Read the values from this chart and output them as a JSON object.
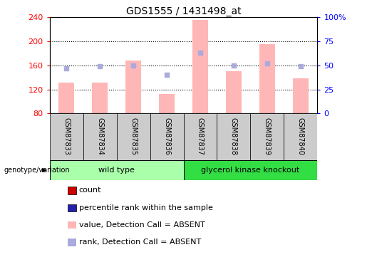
{
  "title": "GDS1555 / 1431498_at",
  "samples": [
    "GSM87833",
    "GSM87834",
    "GSM87835",
    "GSM87836",
    "GSM87837",
    "GSM87838",
    "GSM87839",
    "GSM87840"
  ],
  "bar_values": [
    132,
    132,
    168,
    113,
    236,
    150,
    195,
    138
  ],
  "rank_values": [
    47,
    49,
    50,
    40,
    63,
    50,
    52,
    49
  ],
  "bar_bottom": 80,
  "ylim_left": [
    80,
    240
  ],
  "ylim_right": [
    0,
    100
  ],
  "yticks_left": [
    80,
    120,
    160,
    200,
    240
  ],
  "yticks_right": [
    0,
    25,
    50,
    75,
    100
  ],
  "yticklabels_right": [
    "0",
    "25",
    "50",
    "75",
    "100%"
  ],
  "bar_color": "#FFB6B6",
  "rank_color": "#AAAADD",
  "count_color": "#CC0000",
  "rank_marker_color": "#2222AA",
  "group_wt_color": "#AAFFAA",
  "group_gk_color": "#33DD44",
  "sample_bg_color": "#CCCCCC",
  "genotype_label": "genotype/variation",
  "legend_labels": [
    "count",
    "percentile rank within the sample",
    "value, Detection Call = ABSENT",
    "rank, Detection Call = ABSENT"
  ],
  "legend_colors": [
    "#CC0000",
    "#2222AA",
    "#FFB6B6",
    "#AAAADD"
  ],
  "grid_dotted_at": [
    120,
    160,
    200
  ],
  "plot_bg_color": "white",
  "title_fontsize": 10,
  "axis_label_fontsize": 8,
  "tick_fontsize": 8,
  "legend_fontsize": 8,
  "sample_fontsize": 7,
  "group_fontsize": 8
}
